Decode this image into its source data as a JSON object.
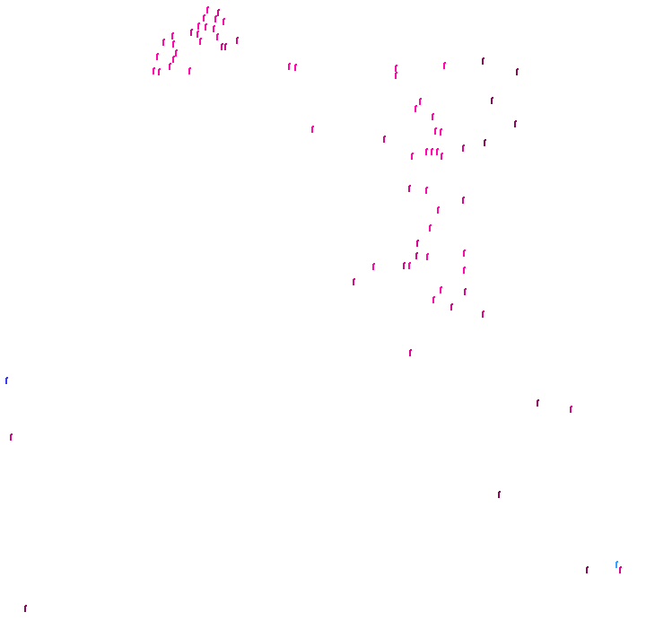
{
  "canvas": {
    "background": "#ffffff"
  },
  "palette": {
    "pink": "#ff0aaa",
    "magenta": "#d40a8c",
    "dark_magenta": "#8a0a5c",
    "blue": "#3a3aff",
    "light_blue": "#3aa0ff"
  }
}
